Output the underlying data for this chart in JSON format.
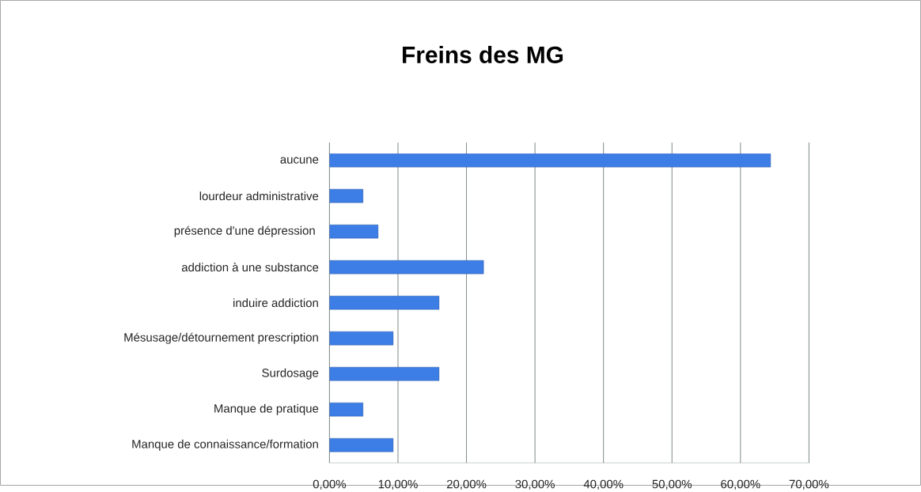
{
  "chart_data": {
    "type": "bar",
    "orientation": "horizontal",
    "title": "Freins des MG",
    "categories": [
      "aucune",
      "lourdeur administrative",
      "présence d'une dépression ",
      "addiction à une substance",
      "induire addiction",
      "Mésusage/détournement prescription",
      "Surdosage",
      "Manque de pratique",
      "Manque de connaissance/formation"
    ],
    "values": [
      64.4,
      4.9,
      7.1,
      22.5,
      16,
      9.3,
      16,
      4.9,
      9.3
    ],
    "color": "#3c7de6",
    "xlim": [
      0,
      70
    ],
    "xticks": [
      {
        "value": 0,
        "label": "0,00%"
      },
      {
        "value": 10,
        "label": "10,00%"
      },
      {
        "value": 20,
        "label": "20,00%"
      },
      {
        "value": 30,
        "label": "30,00%"
      },
      {
        "value": 40,
        "label": "40,00%"
      },
      {
        "value": 50,
        "label": "50,00%"
      },
      {
        "value": 60,
        "label": "60,00%"
      },
      {
        "value": 70,
        "label": "70,00%"
      }
    ],
    "grid": "x"
  }
}
